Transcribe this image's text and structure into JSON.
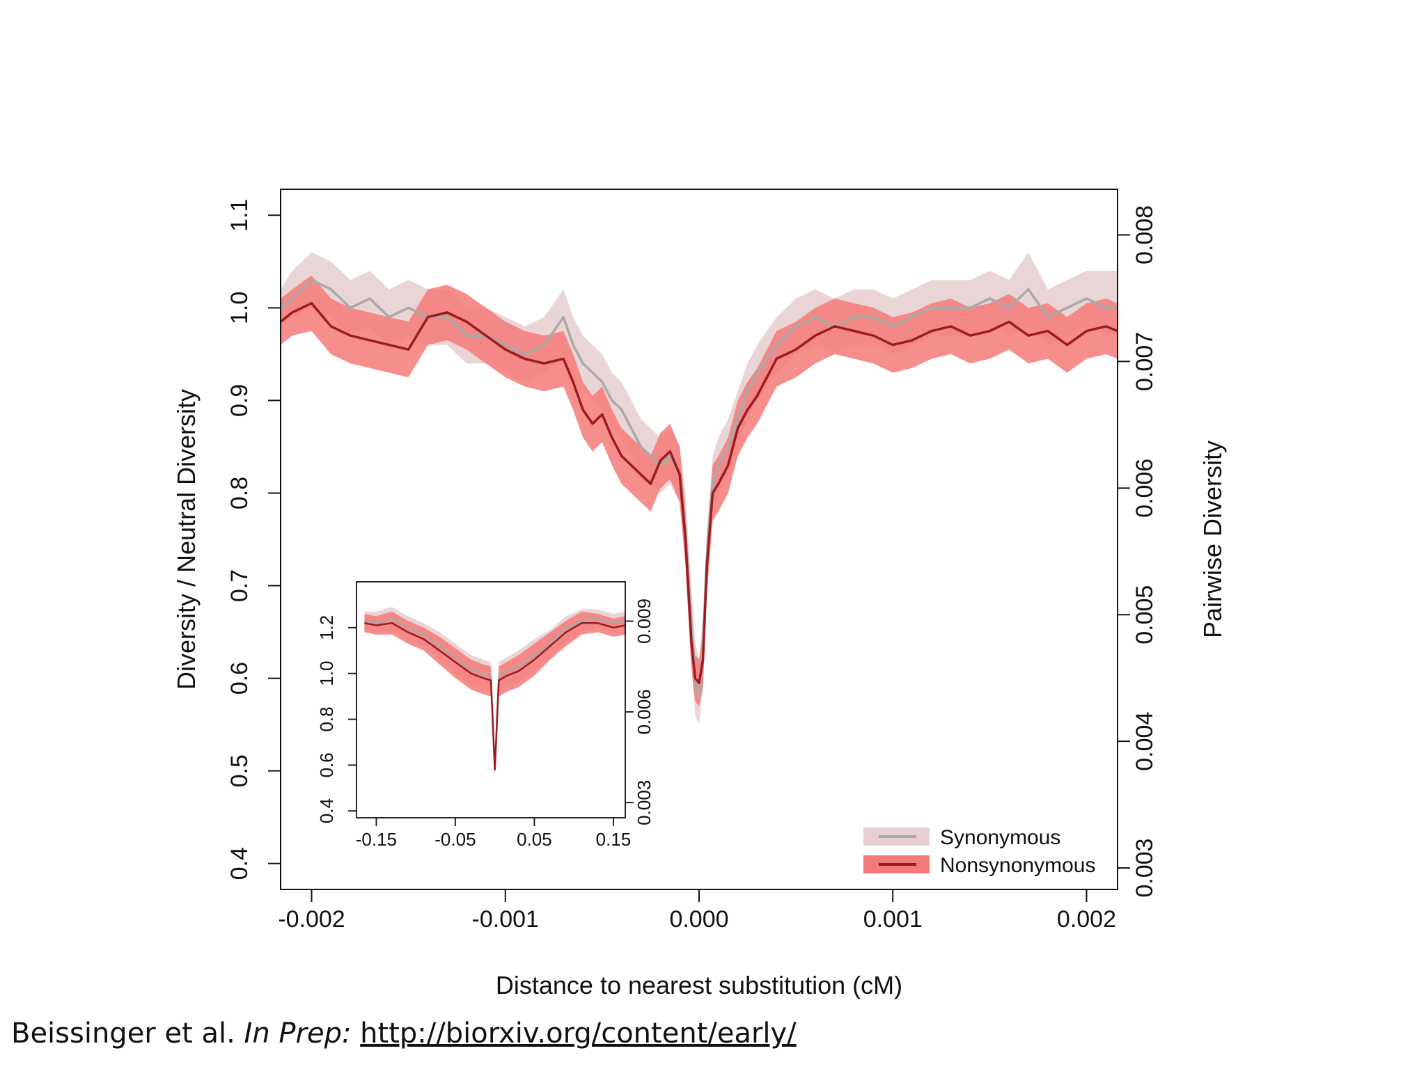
{
  "citation": {
    "authors": "Beissinger et al.",
    "status": "In Prep:",
    "url": "http://biorxiv.org/content/early/"
  },
  "colors": {
    "synonymous_line": "#a9a9a9",
    "synonymous_band": "#e8d0d2",
    "nonsynonymous_line": "#9b1b1f",
    "nonsynonymous_band": "#f47a78"
  },
  "chart_data": [
    {
      "type": "line",
      "xlabel": "Distance to nearest substitution (cM)",
      "ylabel": "Diversity / Neutral Diversity",
      "y2label": "Pairwise Diversity",
      "xlim": [
        -0.00216,
        0.00216
      ],
      "ylim": [
        0.372,
        1.128
      ],
      "xticks": [
        -0.002,
        -0.001,
        0.0,
        0.001,
        0.002
      ],
      "xtick_labels": [
        "-0.002",
        "-0.001",
        "0.000",
        "0.001",
        "0.002"
      ],
      "yticks": [
        0.4,
        0.5,
        0.6,
        0.7,
        0.8,
        0.9,
        1.0,
        1.1
      ],
      "ytick_labels": [
        "0.4",
        "0.5",
        "0.6",
        "0.7",
        "0.8",
        "0.9",
        "1.0",
        "1.1"
      ],
      "y2ticks": [
        0.003,
        0.004,
        0.005,
        0.006,
        0.007,
        0.008
      ],
      "y2tick_labels": [
        "0.003",
        "0.004",
        "0.005",
        "0.006",
        "0.007",
        "0.008"
      ],
      "y2lim": [
        0.00283,
        0.00836
      ],
      "legend": {
        "position": "bottom-right",
        "entries": [
          "Synonymous",
          "Nonsynonymous"
        ]
      },
      "series": [
        {
          "name": "Synonymous",
          "x": [
            -0.00216,
            -0.0021,
            -0.002,
            -0.0019,
            -0.0018,
            -0.0017,
            -0.0016,
            -0.0015,
            -0.0014,
            -0.0013,
            -0.0012,
            -0.0011,
            -0.001,
            -0.0009,
            -0.0008,
            -0.0007,
            -0.00065,
            -0.0006,
            -0.00055,
            -0.0005,
            -0.00045,
            -0.0004,
            -0.00035,
            -0.0003,
            -0.00025,
            -0.0002,
            -0.00015,
            -0.0001,
            -7e-05,
            -4e-05,
            -2e-05,
            0.0,
            2e-05,
            4e-05,
            7e-05,
            0.0001,
            0.00015,
            0.0002,
            0.00025,
            0.0003,
            0.0004,
            0.0005,
            0.0006,
            0.0007,
            0.0008,
            0.0009,
            0.001,
            0.0011,
            0.0012,
            0.0013,
            0.0014,
            0.0015,
            0.0016,
            0.0017,
            0.0018,
            0.0019,
            0.002,
            0.0021,
            0.00216
          ],
          "values": [
            1.0,
            1.01,
            1.03,
            1.02,
            1.0,
            1.01,
            0.99,
            1.0,
            0.99,
            0.99,
            0.97,
            0.97,
            0.96,
            0.95,
            0.96,
            0.99,
            0.96,
            0.94,
            0.93,
            0.92,
            0.9,
            0.89,
            0.87,
            0.85,
            0.84,
            0.83,
            0.84,
            0.82,
            0.76,
            0.66,
            0.6,
            0.58,
            0.63,
            0.73,
            0.81,
            0.83,
            0.85,
            0.88,
            0.91,
            0.93,
            0.96,
            0.98,
            0.99,
            0.98,
            0.99,
            0.99,
            0.98,
            0.99,
            1.0,
            1.0,
            1.0,
            1.01,
            1.0,
            1.02,
            0.99,
            1.0,
            1.01,
            1.0,
            1.0
          ],
          "lower": [
            0.98,
            0.99,
            1.0,
            0.99,
            0.97,
            0.98,
            0.96,
            0.97,
            0.96,
            0.96,
            0.94,
            0.94,
            0.93,
            0.92,
            0.93,
            0.95,
            0.92,
            0.91,
            0.9,
            0.89,
            0.87,
            0.86,
            0.84,
            0.82,
            0.81,
            0.8,
            0.81,
            0.79,
            0.72,
            0.62,
            0.56,
            0.55,
            0.59,
            0.7,
            0.78,
            0.8,
            0.82,
            0.85,
            0.88,
            0.9,
            0.93,
            0.95,
            0.96,
            0.95,
            0.96,
            0.96,
            0.95,
            0.96,
            0.97,
            0.97,
            0.97,
            0.98,
            0.97,
            0.98,
            0.96,
            0.97,
            0.98,
            0.97,
            0.97
          ],
          "upper": [
            1.02,
            1.04,
            1.06,
            1.05,
            1.03,
            1.04,
            1.02,
            1.03,
            1.02,
            1.02,
            1.0,
            1.0,
            0.99,
            0.98,
            0.99,
            1.02,
            0.99,
            0.97,
            0.96,
            0.95,
            0.93,
            0.92,
            0.9,
            0.88,
            0.87,
            0.86,
            0.87,
            0.85,
            0.8,
            0.7,
            0.64,
            0.62,
            0.67,
            0.76,
            0.84,
            0.86,
            0.88,
            0.91,
            0.94,
            0.96,
            0.99,
            1.01,
            1.02,
            1.01,
            1.02,
            1.02,
            1.01,
            1.02,
            1.03,
            1.03,
            1.03,
            1.04,
            1.03,
            1.06,
            1.02,
            1.03,
            1.04,
            1.04,
            1.04
          ]
        },
        {
          "name": "Nonsynonymous",
          "x": [
            -0.00216,
            -0.0021,
            -0.002,
            -0.0019,
            -0.0018,
            -0.0017,
            -0.0016,
            -0.0015,
            -0.0014,
            -0.0013,
            -0.0012,
            -0.0011,
            -0.001,
            -0.0009,
            -0.0008,
            -0.0007,
            -0.00065,
            -0.0006,
            -0.00055,
            -0.0005,
            -0.00045,
            -0.0004,
            -0.00035,
            -0.0003,
            -0.00025,
            -0.0002,
            -0.00015,
            -0.0001,
            -7e-05,
            -4e-05,
            -2e-05,
            0.0,
            2e-05,
            4e-05,
            7e-05,
            0.0001,
            0.00015,
            0.0002,
            0.00025,
            0.0003,
            0.0004,
            0.0005,
            0.0006,
            0.0007,
            0.0008,
            0.0009,
            0.001,
            0.0011,
            0.0012,
            0.0013,
            0.0014,
            0.0015,
            0.0016,
            0.0017,
            0.0018,
            0.0019,
            0.002,
            0.0021,
            0.00216
          ],
          "values": [
            0.985,
            0.995,
            1.005,
            0.98,
            0.97,
            0.965,
            0.96,
            0.955,
            0.99,
            0.995,
            0.985,
            0.97,
            0.955,
            0.945,
            0.94,
            0.945,
            0.92,
            0.89,
            0.875,
            0.885,
            0.86,
            0.84,
            0.83,
            0.82,
            0.81,
            0.835,
            0.845,
            0.82,
            0.75,
            0.64,
            0.6,
            0.595,
            0.62,
            0.72,
            0.8,
            0.81,
            0.83,
            0.87,
            0.89,
            0.905,
            0.945,
            0.955,
            0.97,
            0.98,
            0.975,
            0.97,
            0.96,
            0.965,
            0.975,
            0.98,
            0.97,
            0.975,
            0.985,
            0.97,
            0.975,
            0.96,
            0.975,
            0.98,
            0.975
          ],
          "lower": [
            0.96,
            0.97,
            0.975,
            0.95,
            0.94,
            0.935,
            0.93,
            0.925,
            0.96,
            0.965,
            0.955,
            0.94,
            0.925,
            0.915,
            0.91,
            0.915,
            0.89,
            0.86,
            0.845,
            0.855,
            0.83,
            0.81,
            0.8,
            0.79,
            0.78,
            0.805,
            0.815,
            0.79,
            0.72,
            0.61,
            0.575,
            0.57,
            0.59,
            0.69,
            0.77,
            0.78,
            0.8,
            0.84,
            0.86,
            0.875,
            0.915,
            0.925,
            0.94,
            0.95,
            0.945,
            0.94,
            0.93,
            0.935,
            0.945,
            0.95,
            0.94,
            0.945,
            0.955,
            0.94,
            0.945,
            0.93,
            0.945,
            0.95,
            0.945
          ],
          "upper": [
            1.01,
            1.02,
            1.035,
            1.01,
            1.0,
            0.995,
            0.99,
            0.985,
            1.02,
            1.025,
            1.015,
            1.0,
            0.985,
            0.975,
            0.97,
            0.975,
            0.95,
            0.92,
            0.905,
            0.915,
            0.89,
            0.87,
            0.86,
            0.85,
            0.84,
            0.865,
            0.875,
            0.85,
            0.78,
            0.67,
            0.625,
            0.62,
            0.65,
            0.75,
            0.83,
            0.84,
            0.86,
            0.9,
            0.92,
            0.935,
            0.975,
            0.985,
            1.0,
            1.01,
            1.005,
            1.0,
            0.99,
            0.995,
            1.005,
            1.01,
            1.0,
            1.005,
            1.015,
            1.0,
            1.005,
            0.99,
            1.005,
            1.01,
            1.005
          ]
        }
      ]
    },
    {
      "type": "line",
      "xlim": [
        -0.175,
        0.165
      ],
      "ylim": [
        0.37,
        1.4
      ],
      "xticks": [
        -0.15,
        -0.05,
        0.05,
        0.15
      ],
      "xtick_labels": [
        "-0.15",
        "-0.05",
        "0.05",
        "0.15"
      ],
      "yticks": [
        0.4,
        0.6,
        0.8,
        1.0,
        1.2
      ],
      "ytick_labels": [
        "0.4",
        "0.6",
        "0.8",
        "1.0",
        "1.2"
      ],
      "y2ticks": [
        0.003,
        0.006,
        0.009
      ],
      "y2tick_labels": [
        "0.003",
        "0.006",
        "0.009"
      ],
      "y2lim": [
        0.0025,
        0.0103
      ],
      "series": [
        {
          "name": "Synonymous",
          "x": [
            -0.165,
            -0.15,
            -0.13,
            -0.11,
            -0.09,
            -0.07,
            -0.05,
            -0.03,
            -0.015,
            -0.005,
            0.0,
            0.005,
            0.015,
            0.03,
            0.05,
            0.07,
            0.09,
            0.11,
            0.13,
            0.15,
            0.165
          ],
          "values": [
            1.23,
            1.22,
            1.24,
            1.2,
            1.17,
            1.12,
            1.07,
            1.02,
            1.0,
            0.99,
            0.58,
            0.99,
            1.01,
            1.03,
            1.08,
            1.13,
            1.2,
            1.23,
            1.24,
            1.22,
            1.23
          ],
          "lower": [
            1.19,
            1.18,
            1.19,
            1.15,
            1.12,
            1.06,
            1.0,
            0.95,
            0.93,
            0.92,
            0.56,
            0.92,
            0.94,
            0.96,
            1.01,
            1.07,
            1.14,
            1.18,
            1.2,
            1.18,
            1.19
          ],
          "upper": [
            1.27,
            1.27,
            1.29,
            1.25,
            1.22,
            1.18,
            1.13,
            1.08,
            1.06,
            1.05,
            0.62,
            1.05,
            1.07,
            1.1,
            1.15,
            1.19,
            1.25,
            1.28,
            1.28,
            1.26,
            1.27
          ]
        },
        {
          "name": "Nonsynonymous",
          "x": [
            -0.165,
            -0.15,
            -0.13,
            -0.11,
            -0.09,
            -0.07,
            -0.05,
            -0.03,
            -0.015,
            -0.005,
            0.0,
            0.005,
            0.015,
            0.03,
            0.05,
            0.07,
            0.09,
            0.11,
            0.13,
            0.15,
            0.165
          ],
          "values": [
            1.22,
            1.21,
            1.22,
            1.18,
            1.15,
            1.1,
            1.05,
            1.0,
            0.98,
            0.97,
            0.58,
            0.97,
            0.99,
            1.01,
            1.06,
            1.12,
            1.18,
            1.22,
            1.22,
            1.2,
            1.21
          ],
          "lower": [
            1.18,
            1.17,
            1.17,
            1.13,
            1.1,
            1.04,
            0.98,
            0.93,
            0.91,
            0.9,
            0.56,
            0.9,
            0.92,
            0.94,
            0.99,
            1.06,
            1.12,
            1.17,
            1.18,
            1.16,
            1.17
          ],
          "upper": [
            1.26,
            1.25,
            1.27,
            1.23,
            1.2,
            1.16,
            1.11,
            1.06,
            1.04,
            1.03,
            0.62,
            1.03,
            1.05,
            1.08,
            1.13,
            1.18,
            1.23,
            1.27,
            1.26,
            1.24,
            1.25
          ]
        }
      ]
    }
  ]
}
